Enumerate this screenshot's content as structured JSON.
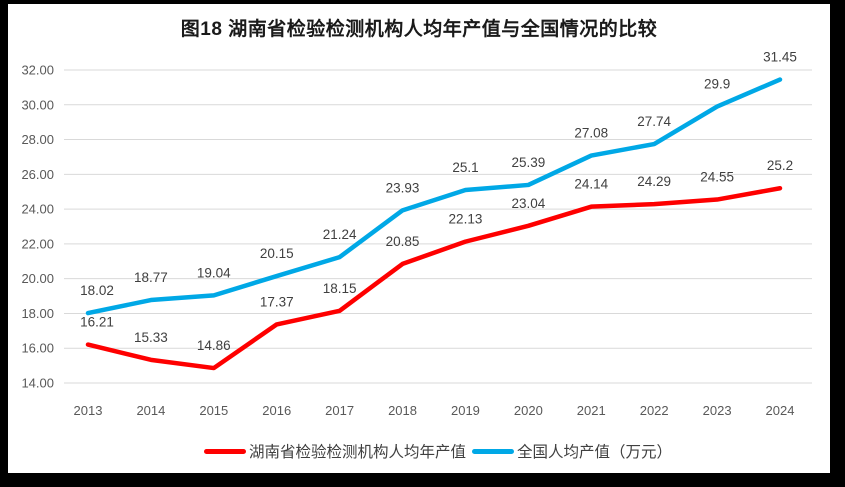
{
  "title": "图18 湖南省检验检测机构人均年产值与全国情况的比较",
  "colors": {
    "hunan_line": "#FE0000",
    "national_line": "#00A8E6",
    "gridline": "#D9D9D9",
    "tick_label": "#595959",
    "data_label": "#404040",
    "title_text": "#1A1A1A",
    "frame": "#000000",
    "background": "#FFFFFF"
  },
  "chart_data": {
    "type": "line",
    "title": "图18 湖南省检验检测机构人均年产值与全国情况的比较",
    "categories": [
      "2013",
      "2014",
      "2015",
      "2016",
      "2017",
      "2018",
      "2019",
      "2020",
      "2021",
      "2022",
      "2023",
      "2024"
    ],
    "series": [
      {
        "id": "hunan",
        "name": "湖南省检验检测机构人均年产值",
        "color": "#FE0000",
        "values": [
          16.21,
          15.33,
          14.86,
          17.37,
          18.15,
          20.85,
          22.13,
          23.04,
          24.14,
          24.29,
          24.55,
          25.2
        ],
        "labels": [
          "16.21",
          "15.33",
          "14.86",
          "17.37",
          "18.15",
          "20.85",
          "22.13",
          "23.04",
          "24.14",
          "24.29",
          "24.55",
          "25.2"
        ]
      },
      {
        "id": "national",
        "name": "全国人均产值（万元）",
        "color": "#00A8E6",
        "values": [
          18.02,
          18.77,
          19.04,
          20.15,
          21.24,
          23.93,
          25.1,
          25.39,
          27.08,
          27.74,
          29.9,
          31.45
        ],
        "labels": [
          "18.02",
          "18.77",
          "19.04",
          "20.15",
          "21.24",
          "23.93",
          "25.1",
          "25.39",
          "27.08",
          "27.74",
          "29.9",
          "31.45"
        ]
      }
    ],
    "y_axis": {
      "min": 14,
      "max": 32,
      "step": 2,
      "tick_labels": [
        "14.00",
        "16.00",
        "18.00",
        "20.00",
        "22.00",
        "24.00",
        "26.00",
        "28.00",
        "30.00",
        "32.00"
      ]
    },
    "x_axis": {
      "tick_labels": [
        "2013",
        "2014",
        "2015",
        "2016",
        "2017",
        "2018",
        "2019",
        "2020",
        "2021",
        "2022",
        "2023",
        "2024"
      ]
    },
    "grid": true,
    "legend_position": "bottom",
    "data_labels_shown": true
  }
}
